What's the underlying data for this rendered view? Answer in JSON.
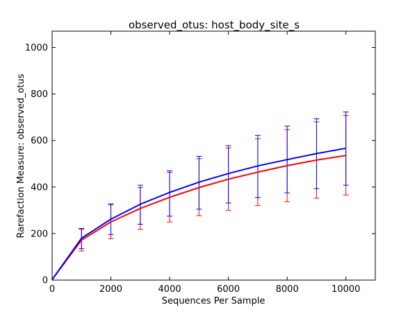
{
  "chart_data": {
    "type": "line",
    "title": "observed_otus: host_body_site_s",
    "xlabel": "Sequences Per Sample",
    "ylabel": "Rarefaction Measure: observed_otus",
    "xlim": [
      0,
      11000
    ],
    "ylim": [
      0,
      1070
    ],
    "xticks": [
      0,
      2000,
      4000,
      6000,
      8000,
      10000
    ],
    "yticks": [
      0,
      200,
      400,
      600,
      800,
      1000
    ],
    "grid": false,
    "legend": "none",
    "x": [
      0,
      1000,
      2000,
      3000,
      4000,
      5000,
      6000,
      7000,
      8000,
      9000,
      10000
    ],
    "series": [
      {
        "color": "#ff0000",
        "values": [
          2,
          172,
          250,
          308,
          356,
          398,
          434,
          464,
          492,
          516,
          536
        ],
        "err_low": [
          2,
          125,
          178,
          218,
          250,
          277,
          300,
          320,
          337,
          352,
          366
        ],
        "err_high": [
          2,
          218,
          323,
          398,
          463,
          522,
          568,
          608,
          647,
          680,
          708
        ]
      },
      {
        "color": "#0000ff",
        "values": [
          2,
          180,
          262,
          326,
          377,
          421,
          458,
          491,
          518,
          544,
          567
        ],
        "err_low": [
          2,
          135,
          196,
          240,
          275,
          305,
          331,
          355,
          375,
          393,
          408
        ],
        "err_high": [
          2,
          222,
          328,
          408,
          470,
          532,
          578,
          622,
          662,
          694,
          723
        ]
      }
    ]
  }
}
